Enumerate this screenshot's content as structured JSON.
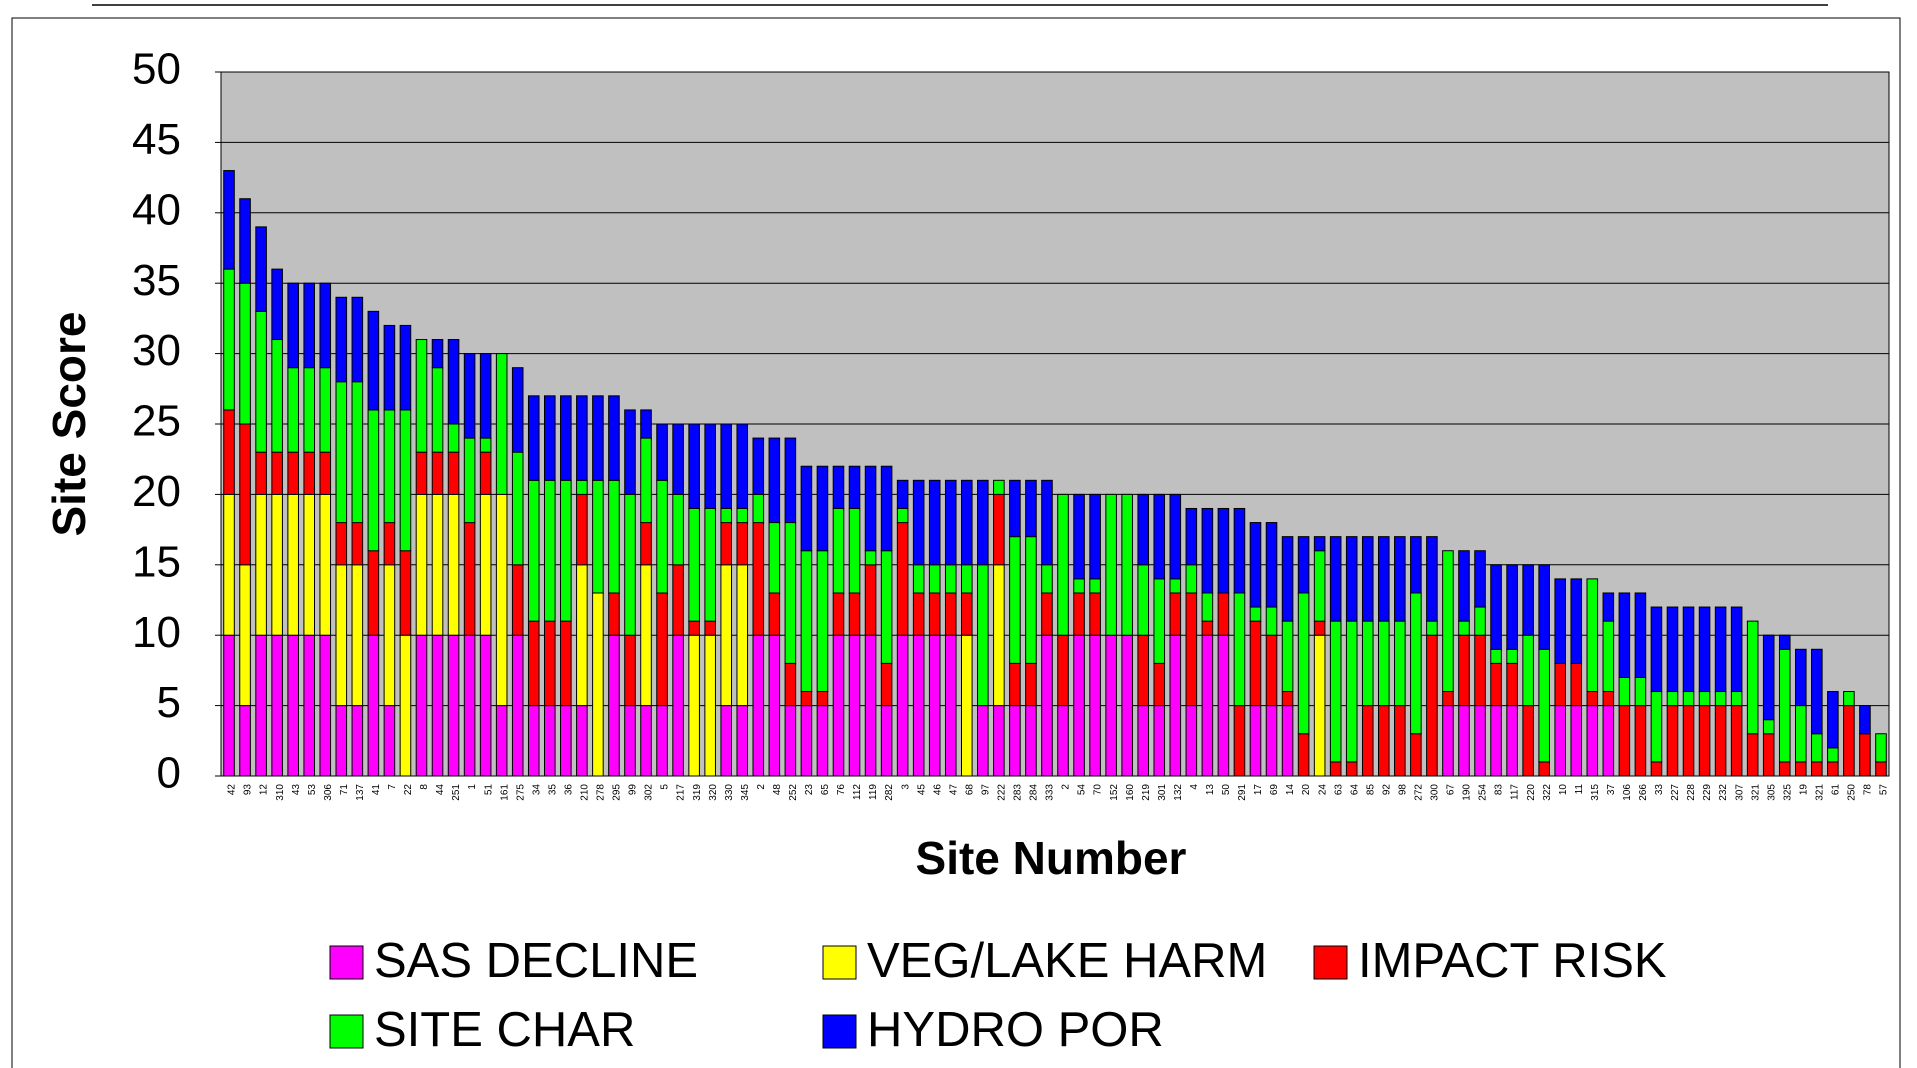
{
  "chart_data": {
    "type": "stacked_bar",
    "xlabel": "Site Number",
    "ylabel": "Site Score",
    "categories": [
      "42",
      "93",
      "12",
      "310",
      "43",
      "53",
      "306",
      "71",
      "137",
      "41",
      "7",
      "22",
      "8",
      "44",
      "251",
      "1",
      "51",
      "161",
      "275",
      "34",
      "35",
      "36",
      "210",
      "278",
      "295",
      "99",
      "302",
      "5",
      "217",
      "319",
      "320",
      "330",
      "345",
      "2",
      "48",
      "252",
      "23",
      "65",
      "76",
      "112",
      "119",
      "282",
      "3",
      "45",
      "46",
      "47",
      "68",
      "97",
      "222",
      "283",
      "284",
      "333",
      "2",
      "54",
      "70",
      "152",
      "160",
      "219",
      "301",
      "132",
      "4",
      "13",
      "50",
      "291",
      "17",
      "69",
      "14",
      "20",
      "24",
      "63",
      "64",
      "85",
      "92",
      "98",
      "272",
      "300",
      "67",
      "190",
      "254",
      "83",
      "117",
      "220",
      "322",
      "10",
      "11",
      "315",
      "37",
      "106",
      "266",
      "33",
      "227",
      "228",
      "229",
      "232",
      "307",
      "321",
      "305",
      "325",
      "19",
      "321",
      "61",
      "250",
      "78",
      "57"
    ],
    "series": [
      {
        "name": "SAS DECLINE",
        "color": "#ff00ff",
        "values": [
          10,
          5,
          10,
          10,
          10,
          10,
          10,
          5,
          5,
          10,
          5,
          0,
          10,
          10,
          10,
          10,
          10,
          5,
          10,
          5,
          5,
          5,
          5,
          0,
          10,
          5,
          5,
          5,
          10,
          0,
          0,
          5,
          5,
          10,
          10,
          5,
          5,
          5,
          10,
          10,
          10,
          5,
          10,
          10,
          10,
          10,
          0,
          5,
          5,
          5,
          5,
          10,
          5,
          10,
          10,
          10,
          10,
          5,
          5,
          10,
          5,
          10,
          10,
          0,
          5,
          5,
          5,
          0,
          0,
          0,
          0,
          0,
          0,
          0,
          0,
          0,
          5,
          5,
          5,
          5,
          5,
          0,
          0,
          5,
          5,
          5,
          5,
          0,
          0,
          0,
          0,
          0,
          0,
          0,
          0,
          0,
          0,
          0,
          0,
          0,
          0,
          0,
          0,
          0
        ]
      },
      {
        "name": "VEG/LAKE HARM",
        "color": "#ffff00",
        "values": [
          10,
          10,
          10,
          10,
          10,
          10,
          10,
          10,
          10,
          0,
          10,
          10,
          10,
          10,
          10,
          0,
          10,
          15,
          0,
          0,
          0,
          0,
          10,
          13,
          0,
          0,
          10,
          0,
          0,
          10,
          10,
          10,
          10,
          0,
          0,
          0,
          0,
          0,
          0,
          0,
          0,
          0,
          0,
          0,
          0,
          0,
          10,
          0,
          10,
          0,
          0,
          0,
          0,
          0,
          0,
          0,
          0,
          0,
          0,
          0,
          0,
          0,
          0,
          0,
          0,
          0,
          0,
          0,
          10,
          0,
          0,
          0,
          0,
          0,
          0,
          0,
          0,
          0,
          0,
          0,
          0,
          0,
          0,
          0,
          0,
          0,
          0,
          0,
          0,
          0,
          0,
          0,
          0,
          0,
          0,
          0,
          0,
          0,
          0,
          0,
          0,
          0,
          0,
          0
        ]
      },
      {
        "name": "IMPACT RISK",
        "color": "#ff0000",
        "values": [
          6,
          10,
          3,
          3,
          3,
          3,
          3,
          3,
          3,
          6,
          3,
          6,
          3,
          3,
          3,
          8,
          3,
          0,
          5,
          6,
          6,
          6,
          5,
          0,
          3,
          5,
          3,
          8,
          5,
          1,
          1,
          3,
          3,
          8,
          3,
          3,
          1,
          1,
          3,
          3,
          5,
          3,
          8,
          3,
          3,
          3,
          3,
          0,
          5,
          3,
          3,
          3,
          5,
          3,
          3,
          0,
          0,
          5,
          3,
          3,
          8,
          1,
          3,
          5,
          6,
          5,
          1,
          3,
          1,
          1,
          1,
          5,
          5,
          5,
          3,
          10,
          1,
          5,
          5,
          3,
          3,
          5,
          1,
          3,
          3,
          1,
          1,
          5,
          5,
          1,
          5,
          5,
          5,
          5,
          5,
          3,
          3,
          1,
          1,
          1,
          1,
          5,
          3,
          1
        ]
      },
      {
        "name": "SITE CHAR",
        "color": "#00ff00",
        "values": [
          10,
          10,
          10,
          8,
          6,
          6,
          6,
          10,
          10,
          10,
          8,
          10,
          8,
          6,
          2,
          6,
          1,
          10,
          8,
          10,
          10,
          10,
          1,
          8,
          8,
          10,
          6,
          8,
          5,
          8,
          8,
          1,
          1,
          2,
          5,
          10,
          10,
          10,
          6,
          6,
          1,
          8,
          1,
          2,
          2,
          2,
          2,
          10,
          1,
          9,
          9,
          2,
          10,
          1,
          1,
          10,
          10,
          5,
          6,
          1,
          2,
          2,
          0,
          8,
          1,
          2,
          5,
          10,
          5,
          10,
          10,
          6,
          6,
          6,
          10,
          1,
          10,
          1,
          2,
          1,
          1,
          5,
          8,
          0,
          0,
          8,
          5,
          2,
          2,
          5,
          1,
          1,
          1,
          1,
          1,
          8,
          1,
          8,
          4,
          2,
          1,
          1,
          0,
          2
        ]
      },
      {
        "name": "HYDRO POR",
        "color": "#0000ff",
        "values": [
          7,
          6,
          6,
          5,
          6,
          6,
          6,
          6,
          6,
          7,
          6,
          6,
          0,
          2,
          6,
          6,
          6,
          0,
          6,
          6,
          6,
          6,
          6,
          6,
          6,
          6,
          2,
          4,
          5,
          6,
          6,
          6,
          6,
          4,
          6,
          6,
          6,
          6,
          3,
          3,
          6,
          6,
          2,
          6,
          6,
          6,
          6,
          6,
          0,
          4,
          4,
          6,
          0,
          6,
          6,
          0,
          0,
          5,
          6,
          6,
          4,
          6,
          6,
          6,
          6,
          6,
          6,
          4,
          1,
          6,
          6,
          6,
          6,
          6,
          4,
          6,
          0,
          5,
          4,
          6,
          6,
          5,
          6,
          6,
          6,
          0,
          2,
          6,
          6,
          6,
          6,
          6,
          6,
          6,
          6,
          0,
          6,
          1,
          4,
          6,
          4,
          0,
          2,
          0
        ]
      }
    ],
    "ylim": [
      0,
      50
    ],
    "yticks": [
      0,
      5,
      10,
      15,
      20,
      25,
      30,
      35,
      40,
      45,
      50
    ],
    "grid": true,
    "plot_color": "#c0c0c0",
    "legend": "bottom"
  }
}
